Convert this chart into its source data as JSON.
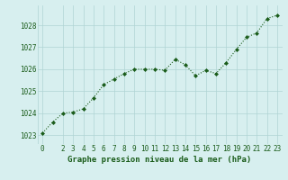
{
  "x": [
    0,
    1,
    2,
    3,
    4,
    5,
    6,
    7,
    8,
    9,
    10,
    11,
    12,
    13,
    14,
    15,
    16,
    17,
    18,
    19,
    20,
    21,
    22,
    23
  ],
  "y": [
    1023.1,
    1023.6,
    1024.0,
    1024.05,
    1024.2,
    1024.7,
    1025.3,
    1025.55,
    1025.8,
    1026.0,
    1026.0,
    1026.0,
    1025.95,
    1026.45,
    1026.2,
    1025.7,
    1025.95,
    1025.8,
    1026.3,
    1026.9,
    1027.45,
    1027.65,
    1028.3,
    1028.45
  ],
  "line_color": "#1a5c1a",
  "marker": "D",
  "marker_size": 2.0,
  "bg_color": "#d7efef",
  "grid_color": "#b0d4d4",
  "xlabel": "Graphe pression niveau de la mer (hPa)",
  "xlabel_color": "#1a5c1a",
  "xlabel_fontsize": 6.5,
  "tick_color": "#1a5c1a",
  "tick_fontsize": 5.5,
  "yticks": [
    1023,
    1024,
    1025,
    1026,
    1027,
    1028
  ],
  "xticks": [
    0,
    2,
    3,
    4,
    5,
    6,
    7,
    8,
    9,
    10,
    11,
    12,
    13,
    14,
    15,
    16,
    17,
    18,
    19,
    20,
    21,
    22,
    23
  ],
  "ylim": [
    1022.6,
    1028.9
  ],
  "xlim": [
    -0.5,
    23.5
  ]
}
